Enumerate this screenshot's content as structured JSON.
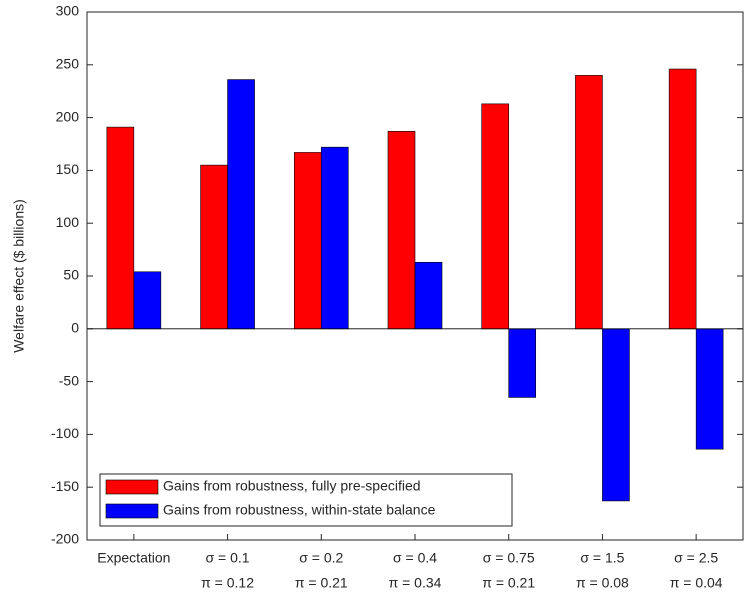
{
  "chart_data": {
    "type": "bar",
    "ylabel": "Welfare effect ($ billions)",
    "categories": [
      "Expectation",
      "σ = 0.1",
      "σ = 0.2",
      "σ = 0.4",
      "σ = 0.75",
      "σ = 1.5",
      "σ = 2.5"
    ],
    "category_sublabels": [
      null,
      "π = 0.12",
      "π = 0.21",
      "π = 0.34",
      "π = 0.21",
      "π = 0.08",
      "π = 0.04"
    ],
    "series": [
      {
        "name": "Gains from robustness, fully pre-specified",
        "color": "#ff0000",
        "values": [
          191,
          155,
          167,
          187,
          213,
          240,
          246
        ]
      },
      {
        "name": "Gains from robustness, within-state balance",
        "color": "#0000ff",
        "values": [
          54,
          236,
          172,
          63,
          -65,
          -163,
          -114
        ]
      }
    ],
    "ylim": [
      -200,
      300
    ],
    "yticks": [
      -200,
      -150,
      -100,
      -50,
      0,
      50,
      100,
      150,
      200,
      250,
      300
    ],
    "grid": false,
    "legend": "lower left"
  }
}
